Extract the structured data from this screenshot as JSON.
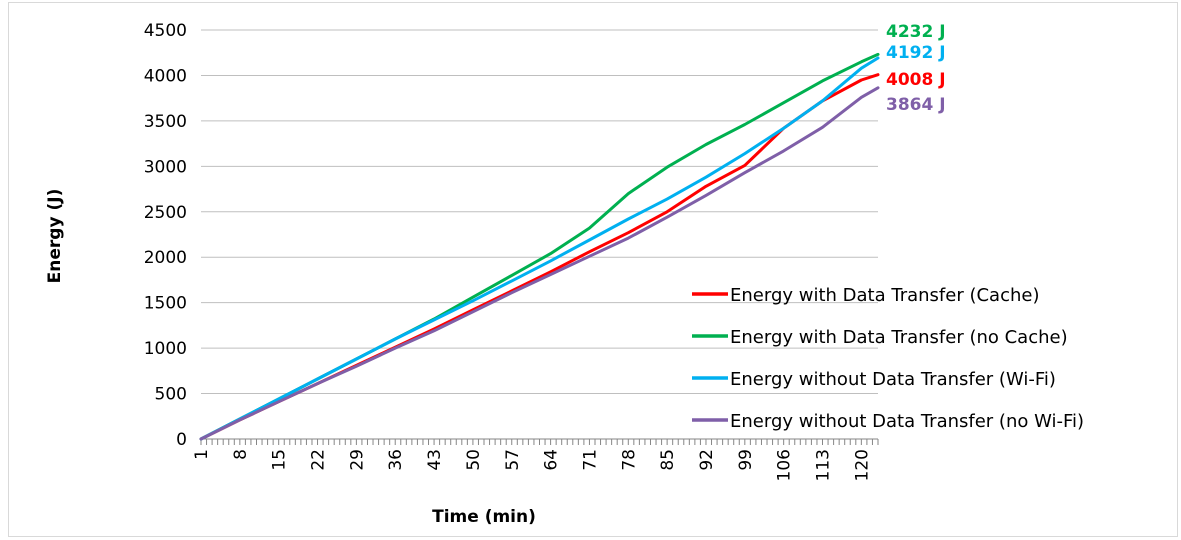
{
  "chart_data": {
    "type": "line",
    "title": "",
    "xlabel": "Time (min)",
    "ylabel": "Energy (J)",
    "xlim": [
      1,
      123
    ],
    "ylim": [
      0,
      4500
    ],
    "yticks": [
      0,
      500,
      1000,
      1500,
      2000,
      2500,
      3000,
      3500,
      4000,
      4500
    ],
    "xticks": [
      1,
      8,
      15,
      22,
      29,
      36,
      43,
      50,
      57,
      64,
      71,
      78,
      85,
      92,
      99,
      106,
      113,
      120
    ],
    "grid": "horizontal",
    "legend": "bottom-right",
    "x": [
      1,
      8,
      15,
      22,
      29,
      36,
      43,
      50,
      57,
      64,
      71,
      78,
      85,
      92,
      99,
      106,
      113,
      120,
      123
    ],
    "series": [
      {
        "name": "Energy with Data Transfer (Cache)",
        "color": "#ff0000",
        "values": [
          0,
          210,
          410,
          610,
          810,
          1010,
          1210,
          1420,
          1630,
          1840,
          2060,
          2270,
          2500,
          2780,
          3010,
          3420,
          3720,
          3950,
          4008
        ],
        "end_label": "4008 J"
      },
      {
        "name": "Energy with Data Transfer (no Cache)",
        "color": "#00b050",
        "values": [
          0,
          220,
          440,
          660,
          880,
          1100,
          1320,
          1560,
          1800,
          2040,
          2320,
          2700,
          2990,
          3240,
          3460,
          3700,
          3940,
          4150,
          4232
        ],
        "end_label": "4232 J"
      },
      {
        "name": "Energy without Data Transfer (Wi-Fi)",
        "color": "#00b0f0",
        "values": [
          0,
          220,
          440,
          660,
          880,
          1100,
          1310,
          1520,
          1740,
          1960,
          2190,
          2420,
          2640,
          2880,
          3140,
          3420,
          3720,
          4080,
          4192
        ],
        "end_label": "4192 J"
      },
      {
        "name": "Energy without Data Transfer (no Wi-Fi)",
        "color": "#7f5fa8",
        "values": [
          0,
          210,
          410,
          610,
          800,
          1000,
          1190,
          1400,
          1610,
          1810,
          2010,
          2210,
          2440,
          2680,
          2930,
          3170,
          3430,
          3760,
          3864
        ],
        "end_label": "3864 J"
      }
    ]
  }
}
